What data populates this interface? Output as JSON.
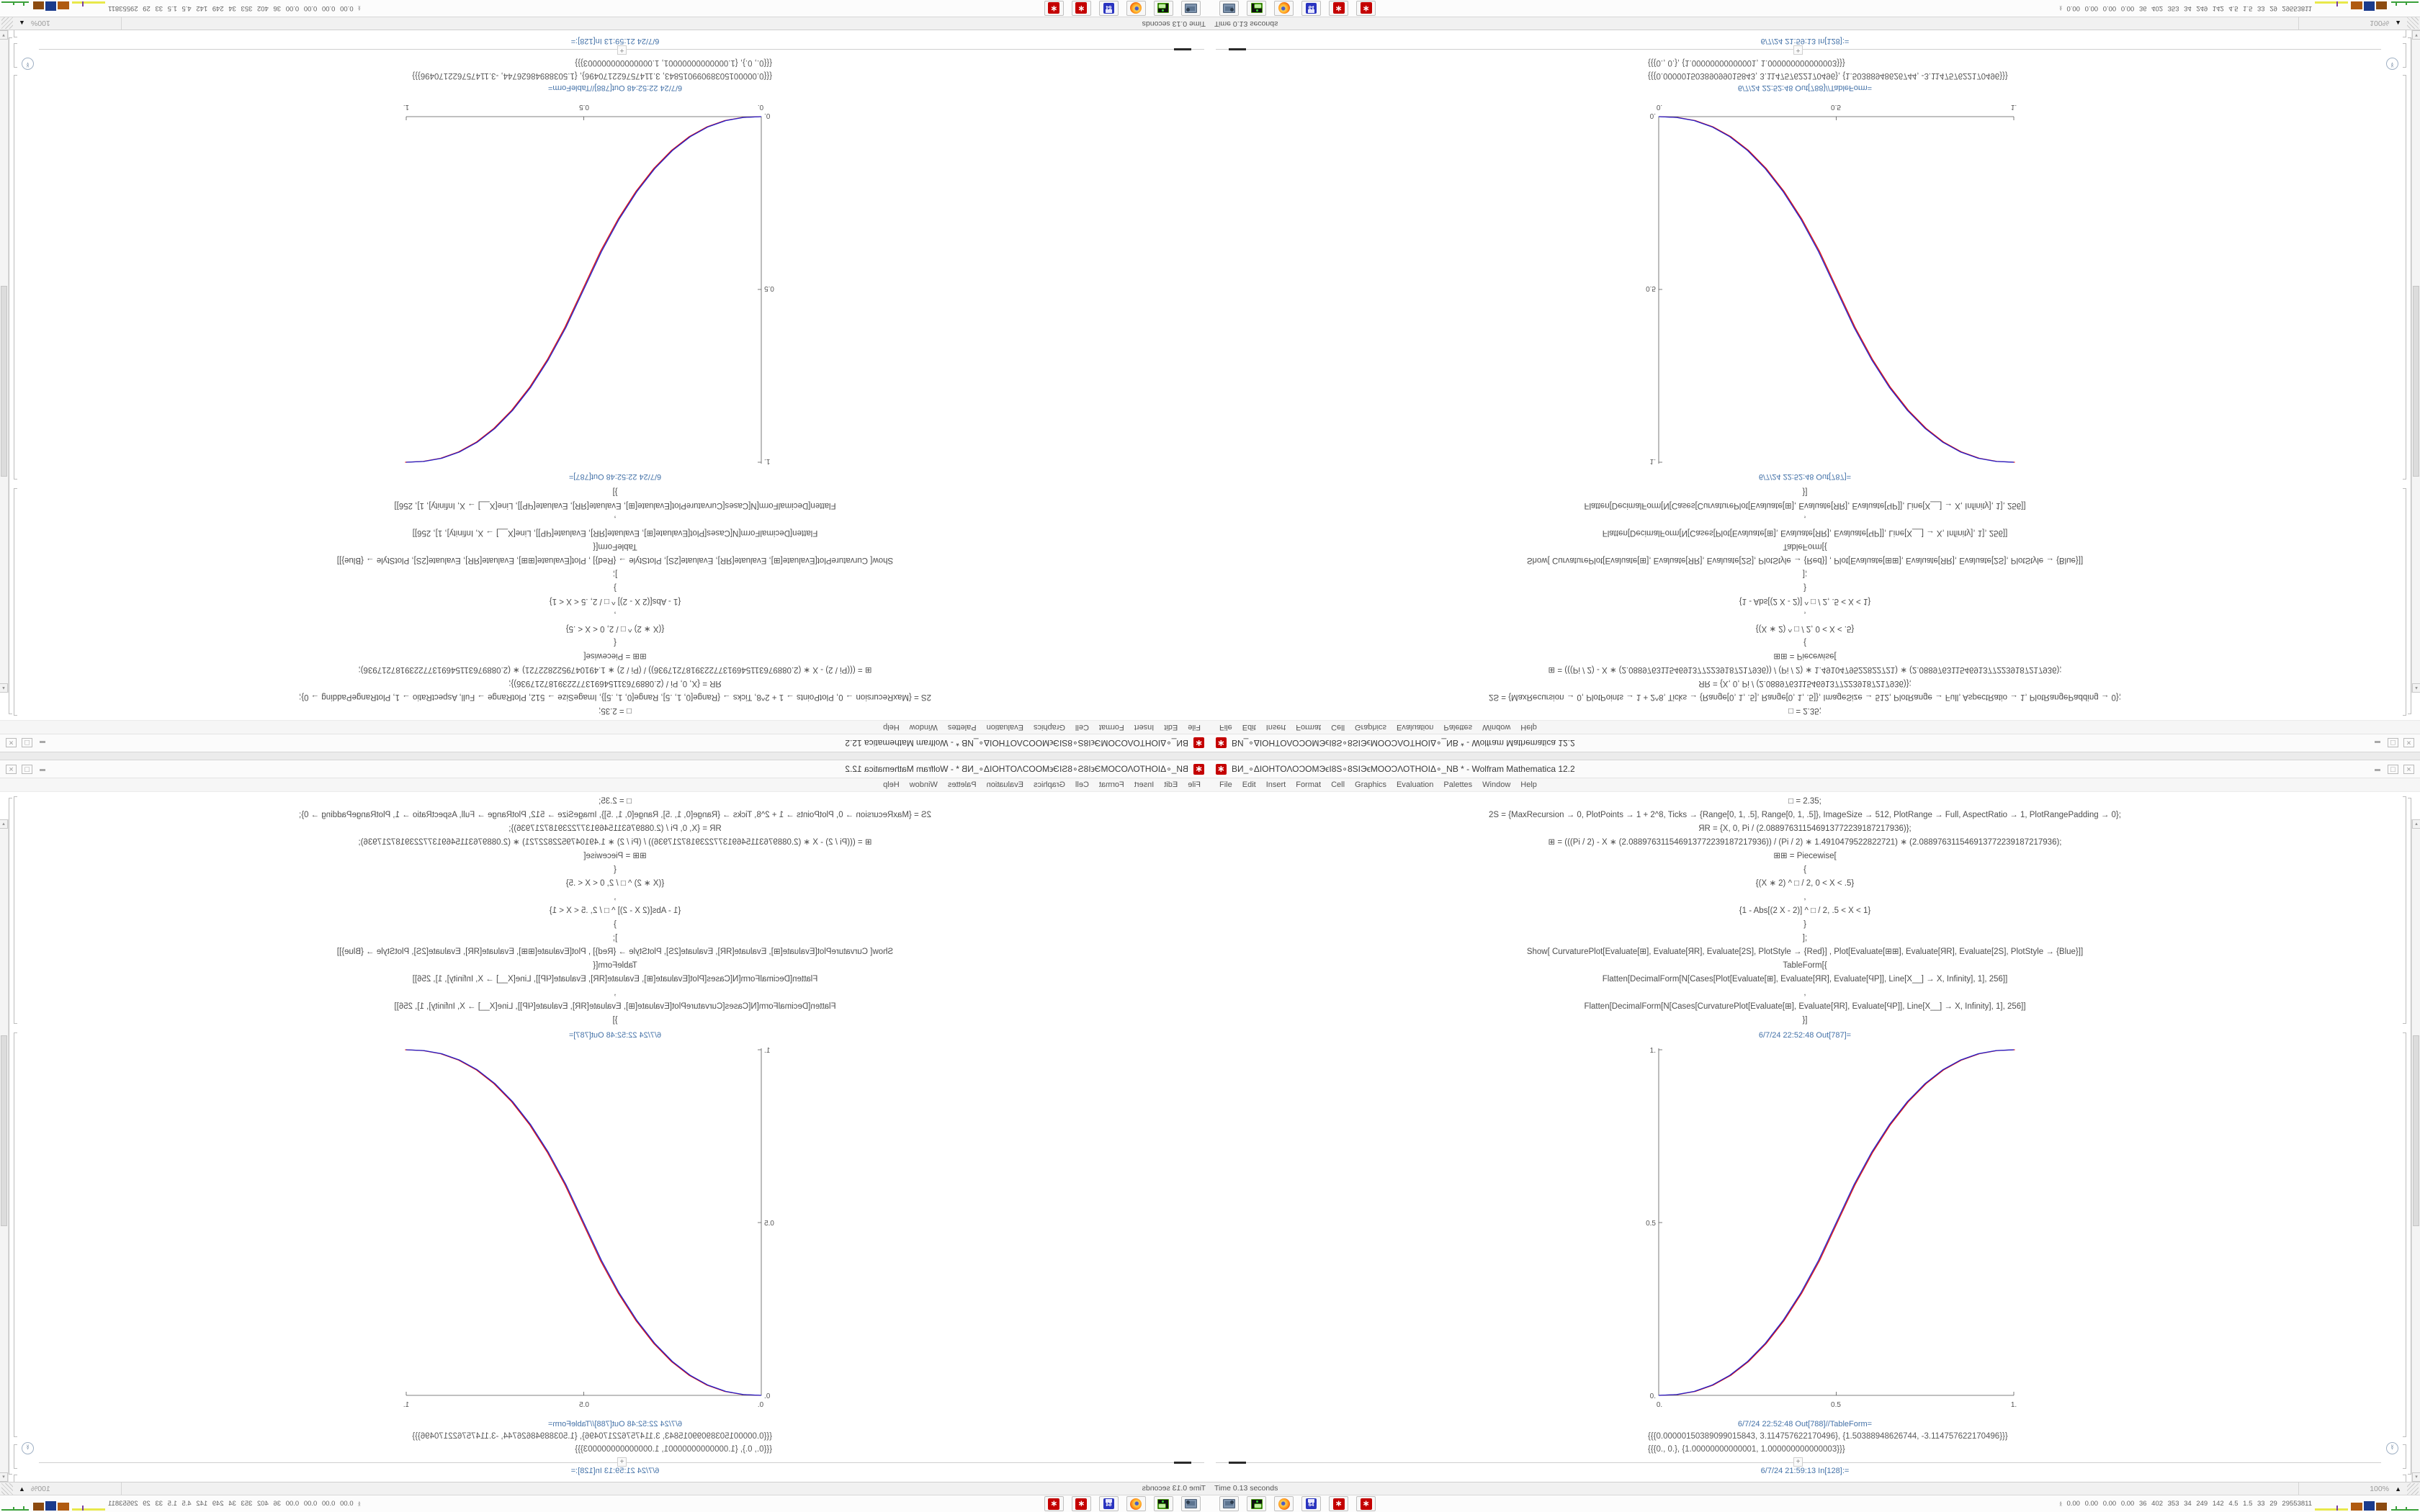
{
  "window": {
    "title": "ВИ_∘ΔΙΟΗΤΟΛΟƆΟΜЭϵΙ8Ѕ∘8ЅΙЭϵΜΟΟƆΛΟΤΗΟΙΔ∘_NB * - Wolfram Mathematica 12.2",
    "app_icon_glyph": "∗",
    "controls": {
      "maximize": "□",
      "close": "×"
    },
    "menu": [
      "File",
      "Edit",
      "Insert",
      "Format",
      "Cell",
      "Graphics",
      "Evaluation",
      "Palettes",
      "Window",
      "Help"
    ]
  },
  "notebook": {
    "input_lines": [
      "□ = 2.35;",
      "2Ѕ = {MaxRecursion → 0, PlotPoints → 1 + 2^8, Ticks → {Range[0, 1, .5], Range[0, 1, .5]}, ImageSize → 512, PlotRange → Full, AspectRatio → 1, PlotRangePadding → 0};",
      "ЯR = {X, 0, Pi / (2.088976311546913772239187217936)};",
      "⊞ = (((Pi / 2) - X ∗ (2.088976311546913772239187217936)) / (Pi / 2) ∗ 1.4910479522822721) ∗ (2.088976311546913772239187217936);",
      "⊞⊞ = Piecewise[",
      "{",
      "{(X ∗ 2) ^ □ / 2, 0 < X < .5}",
      ",",
      "{1 - Abs[(2 X - 2)] ^ □ / 2, .5 < X < 1}",
      "}",
      "];",
      "Show[   CurvaturePlot[Evaluate[⊞], Evaluate[ЯR], Evaluate[2Ѕ], PlotStyle → {Red}]   ,   Plot[Evaluate[⊞⊞], Evaluate[ЯR], Evaluate[2Ѕ], PlotStyle → {Blue}]]",
      "TableForm[{",
      "Flatten[DecimalForm[N[Cases[Plot[Evaluate[⊞], Evaluate[ЯR], Evaluate[ϤР]], Line[X__] → X, Infinity], 1], 256]]",
      ",",
      "Flatten[DecimalForm[N[Cases[CurvaturePlot[Evaluate[⊞], Evaluate[ЯR], Evaluate[ϤР]], Line[X__] → X, Infinity], 1], 256]]",
      "}]"
    ],
    "out_label_1": "6/7/24 22:52:48 Out[787]=",
    "out_label_2": "6/7/24 22:52:48 Out[788]//TableForm=",
    "table_rows": [
      "{{{0.00000150389099015843, 3.114757622170496}, {1.50388948626744, -3.114757622170496}}}",
      "{{{0., 0.}, {1.00000000000001, 1.000000000000003}}}"
    ],
    "insert_plus": "+",
    "next_in_label": "6/7/24 21:59:13 In[128]:=",
    "suppress_chevron": "∨",
    "scroll_up_glyph": "▴",
    "scroll_down_glyph": "▾",
    "insert_menu_glyph": "▾"
  },
  "statusbar": {
    "time": "Time 0.13 seconds",
    "zoom": "100%",
    "zoom_arrow": "▲"
  },
  "taskbar": {
    "icons": [
      "screenshot-tool",
      "terminal-device",
      "firefox",
      "floppy-64",
      "mathematica",
      "mathematica"
    ],
    "floppy_label": "64",
    "mma_glyph": "∗",
    "tray_chevron": "∧",
    "tray_numbers": "0.00 0.00 0.00 0.00  36  402  353  34  249  142  4.5  1.5  33  29  29553811"
  },
  "chart_data": {
    "type": "line",
    "title": "",
    "xlabel": "",
    "ylabel": "",
    "xlim": [
      0,
      1
    ],
    "ylim": [
      0,
      1
    ],
    "grid": false,
    "legend_position": "none",
    "axes_style": "left-bottom, ticks at 0, 0.5, 1",
    "x_ticks": [
      "0.",
      "0.5",
      "1."
    ],
    "y_ticks": [
      "0.",
      "0.5",
      "1."
    ],
    "x": [
      0,
      0.05,
      0.1,
      0.15,
      0.2,
      0.25,
      0.3,
      0.35,
      0.4,
      0.45,
      0.5,
      0.55,
      0.6,
      0.65,
      0.7,
      0.75,
      0.8,
      0.85,
      0.9,
      0.95,
      1
    ],
    "series": [
      {
        "name": "CurvaturePlot (Red)",
        "color": "#dd1111",
        "y": [
          0,
          0.0022,
          0.0114,
          0.0295,
          0.058,
          0.098,
          0.1505,
          0.2162,
          0.2961,
          0.3903,
          0.5,
          0.6097,
          0.7039,
          0.7838,
          0.8495,
          0.902,
          0.942,
          0.9705,
          0.9886,
          0.9978,
          1
        ]
      },
      {
        "name": "Plot (Blue)",
        "color": "#2222cc",
        "y": [
          0,
          0.0022,
          0.0114,
          0.0295,
          0.058,
          0.098,
          0.1505,
          0.2162,
          0.2961,
          0.3903,
          0.5,
          0.6097,
          0.7039,
          0.7838,
          0.8495,
          0.902,
          0.942,
          0.9705,
          0.9886,
          0.9978,
          1
        ]
      }
    ]
  },
  "layout_note_colors": {
    "app_red": "#c40000",
    "cell_label_blue": "#4472a8"
  }
}
